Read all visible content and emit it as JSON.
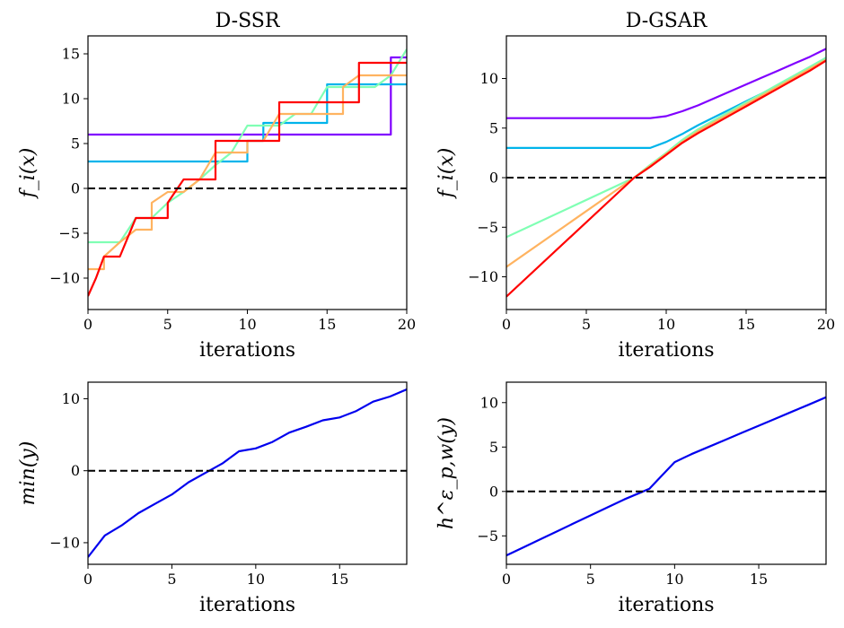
{
  "chart_data": [
    {
      "type": "line",
      "title": "D-SSR",
      "xlabel": "iterations",
      "ylabel": "f_i(x)",
      "xlim": [
        0,
        20
      ],
      "ylim": [
        -13.5,
        17
      ],
      "xticks": [
        0,
        5,
        10,
        15,
        20
      ],
      "yticks": [
        -10,
        -5,
        0,
        5,
        10,
        15
      ],
      "zero_line": true,
      "legend": "none",
      "series": [
        {
          "color": "#8000ff",
          "x": [
            0,
            19,
            19,
            20
          ],
          "y": [
            6,
            6,
            14.6,
            14.6
          ]
        },
        {
          "color": "#00b4eb",
          "x": [
            0,
            10,
            10,
            11,
            11,
            14,
            14,
            15,
            15,
            16,
            16,
            20
          ],
          "y": [
            3,
            3,
            5.3,
            5.3,
            7.3,
            7.3,
            7.3,
            7.3,
            11.6,
            11.6,
            11.6,
            11.6
          ]
        },
        {
          "color": "#80ffb4",
          "x": [
            0,
            2,
            3,
            4,
            5,
            6,
            7,
            8,
            9,
            10,
            11,
            12,
            13,
            14,
            15,
            16,
            17,
            18,
            19,
            20
          ],
          "y": [
            -6,
            -6,
            -3.3,
            -3.3,
            -1.6,
            -0.4,
            1,
            2.6,
            4,
            7,
            7,
            7,
            8.3,
            8.3,
            11.3,
            11.3,
            11.3,
            11.3,
            12.6,
            15.5
          ]
        },
        {
          "color": "#ffb360",
          "x": [
            0,
            1,
            1,
            2,
            3,
            4,
            4,
            5,
            5,
            6,
            7,
            8,
            8,
            10,
            10,
            11,
            11,
            12,
            13,
            14,
            15,
            16,
            16,
            17,
            18,
            19,
            20
          ],
          "y": [
            -9,
            -9,
            -7.6,
            -6,
            -4.6,
            -4.6,
            -1.6,
            -0.4,
            -0.4,
            -0.4,
            1,
            4,
            4,
            4,
            5.3,
            5.3,
            5.3,
            8.3,
            8.3,
            8.3,
            8.3,
            8.3,
            11.3,
            12.6,
            12.6,
            12.6,
            12.6
          ]
        },
        {
          "color": "#ff0000",
          "x": [
            0,
            0.5,
            1,
            2,
            3,
            5,
            5,
            6,
            8,
            8,
            10,
            10,
            12,
            12,
            13,
            13,
            14,
            15,
            16,
            17,
            17,
            19,
            19,
            20
          ],
          "y": [
            -12,
            -10,
            -7.6,
            -7.6,
            -3.3,
            -3.3,
            -1.6,
            1,
            1,
            5.3,
            5.3,
            5.3,
            5.3,
            9.6,
            9.6,
            9.6,
            9.6,
            9.6,
            9.6,
            9.6,
            14,
            14,
            14,
            14
          ]
        }
      ]
    },
    {
      "type": "line",
      "title": "D-GSAR",
      "xlabel": "iterations",
      "ylabel": "f_i(x)",
      "xlim": [
        0,
        20
      ],
      "ylim": [
        -13.3,
        14.3
      ],
      "xticks": [
        0,
        5,
        10,
        15,
        20
      ],
      "yticks": [
        -10,
        -5,
        0,
        5,
        10
      ],
      "zero_line": true,
      "legend": "none",
      "series": [
        {
          "color": "#8000ff",
          "x": [
            0,
            9,
            10,
            11,
            12,
            13,
            14,
            15,
            16,
            17,
            18,
            19,
            20
          ],
          "y": [
            6,
            6,
            6.2,
            6.7,
            7.3,
            8,
            8.7,
            9.4,
            10.1,
            10.8,
            11.5,
            12.2,
            13
          ]
        },
        {
          "color": "#00b4eb",
          "x": [
            0,
            9,
            10,
            11,
            12,
            13,
            14,
            15,
            16,
            17,
            18,
            19,
            20
          ],
          "y": [
            3,
            3,
            3.6,
            4.4,
            5.3,
            6.1,
            6.9,
            7.7,
            8.5,
            9.3,
            10.1,
            10.9,
            12.1
          ]
        },
        {
          "color": "#80ffb4",
          "x": [
            0,
            8,
            9,
            10,
            11,
            12,
            13,
            14,
            15,
            16,
            17,
            18,
            19,
            20
          ],
          "y": [
            -6,
            0,
            1.3,
            2.5,
            3.8,
            4.9,
            5.8,
            6.7,
            7.6,
            8.5,
            9.4,
            10.3,
            11.2,
            12.1
          ]
        },
        {
          "color": "#ffb360",
          "x": [
            0,
            8,
            9,
            10,
            11,
            12,
            13,
            14,
            15,
            16,
            17,
            18,
            19,
            20
          ],
          "y": [
            -9,
            0,
            1.2,
            2.4,
            3.6,
            4.7,
            5.6,
            6.5,
            7.4,
            8.3,
            9.2,
            10.1,
            11,
            11.9
          ]
        },
        {
          "color": "#ff0000",
          "x": [
            0,
            8,
            9,
            10,
            11,
            12,
            13,
            14,
            15,
            16,
            17,
            18,
            19,
            20
          ],
          "y": [
            -12,
            0,
            1.1,
            2.3,
            3.5,
            4.5,
            5.4,
            6.3,
            7.2,
            8.1,
            9,
            9.9,
            10.8,
            11.8
          ]
        }
      ]
    },
    {
      "type": "line",
      "title": "",
      "xlabel": "iterations",
      "ylabel": "min(y)",
      "xlim": [
        0,
        19
      ],
      "ylim": [
        -13,
        12.3
      ],
      "xticks": [
        0,
        5,
        10,
        15
      ],
      "yticks": [
        -10,
        0,
        10
      ],
      "zero_line": true,
      "legend": "none",
      "series": [
        {
          "color": "#0000ee",
          "x": [
            0,
            1,
            2,
            3,
            4,
            5,
            6,
            7,
            8,
            9,
            10,
            11,
            12,
            13,
            14,
            15,
            16,
            17,
            18,
            19
          ],
          "y": [
            -12,
            -9,
            -7.6,
            -5.9,
            -4.6,
            -3.3,
            -1.6,
            -0.3,
            1,
            2.7,
            3.1,
            4,
            5.3,
            6.1,
            7,
            7.4,
            8.3,
            9.6,
            10.3,
            11.3
          ]
        }
      ]
    },
    {
      "type": "line",
      "title": "",
      "xlabel": "iterations",
      "ylabel": "h^ε_p,w(y)",
      "xlim": [
        0,
        19
      ],
      "ylim": [
        -8.2,
        12.3
      ],
      "xticks": [
        0,
        5,
        10,
        15
      ],
      "yticks": [
        -5,
        0,
        5,
        10
      ],
      "zero_line": true,
      "legend": "none",
      "series": [
        {
          "color": "#0000ee",
          "x": [
            0,
            1,
            2,
            3,
            4,
            5,
            6,
            7,
            8,
            8.5,
            9,
            10,
            11,
            12,
            13,
            14,
            15,
            16,
            17,
            18,
            19
          ],
          "y": [
            -7.2,
            -6.3,
            -5.4,
            -4.5,
            -3.6,
            -2.7,
            -1.8,
            -0.9,
            -0.1,
            0.3,
            1.3,
            3.3,
            4.2,
            5,
            5.8,
            6.6,
            7.4,
            8.2,
            9,
            9.8,
            10.6
          ]
        }
      ]
    }
  ]
}
